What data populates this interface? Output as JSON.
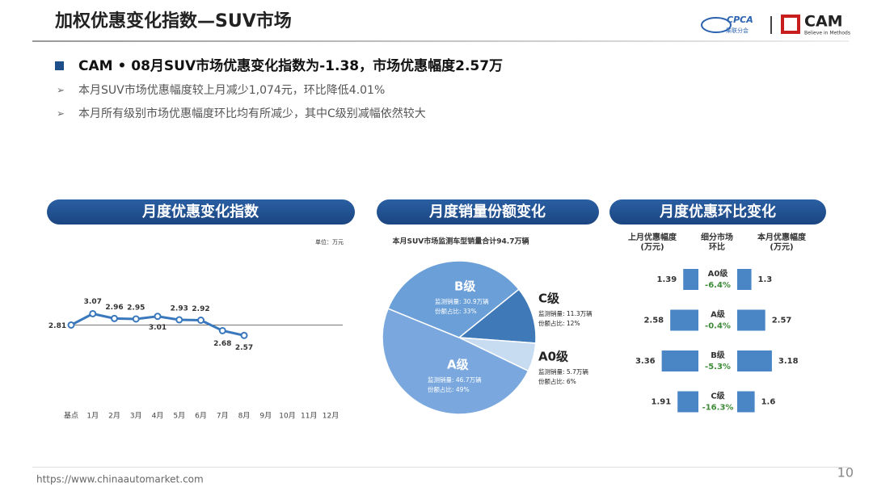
{
  "header": {
    "title": "加权优惠变化指数—SUV市场",
    "logo_cpca": "CPCA",
    "logo_cpca_sub": "乘联分会",
    "logo_cam": "CAM",
    "logo_cam_sub": "Believe in Methods"
  },
  "headline": "CAM • 08月SUV市场优惠变化指数为-1.38，市场优惠幅度2.57万",
  "bullets": [
    "本月SUV市场优惠幅度较上月减少1,074元，环比降低4.01%",
    "本月所有级别市场优惠幅度环比均有所减少，其中C级别减幅依然较大"
  ],
  "footer": {
    "url": "https://www.chinaautomarket.com",
    "page": "10"
  },
  "chart_data": [
    {
      "type": "line",
      "title": "月度优惠变化指数",
      "unit": "单位：万元",
      "categories": [
        "基点",
        "1月",
        "2月",
        "3月",
        "4月",
        "5月",
        "6月",
        "7月",
        "8月",
        "9月",
        "10月",
        "11月",
        "12月"
      ],
      "values": [
        2.81,
        3.07,
        2.96,
        2.95,
        3.01,
        2.93,
        2.92,
        2.68,
        2.57,
        null,
        null,
        null,
        null
      ],
      "color": "#3a78bd",
      "ylim": [
        2.0,
        3.6
      ]
    },
    {
      "type": "pie",
      "title": "月度销量份额变化",
      "subtitle": "本月SUV市场监测车型销量合计94.7万辆",
      "categories": [
        "C级",
        "A0级",
        "A级",
        "B级"
      ],
      "values": [
        12,
        6,
        49,
        33
      ],
      "value_labels": [
        "份额占比: 12%",
        "份额占比: 6%",
        "份额占比: 49%",
        "份额占比: 33%"
      ],
      "sales_labels": [
        "监测销量: 11.3万辆",
        "监测销量: 5.7万辆",
        "监测销量: 46.7万辆",
        "监测销量: 30.9万辆"
      ],
      "colors": [
        "#3f79b8",
        "#c7dbf1",
        "#7aa8de",
        "#6b9fd8"
      ]
    },
    {
      "type": "butterfly",
      "title": "月度优惠环比变化",
      "categories": [
        "A0级",
        "A级",
        "B级",
        "C级"
      ],
      "series": [
        {
          "name": "上月优惠幅度\n(万元)",
          "color": "#4a86c6",
          "values": [
            1.39,
            2.58,
            3.36,
            1.91
          ]
        },
        {
          "name": "本月优惠幅度\n(万元)",
          "color": "#4a86c6",
          "values": [
            1.3,
            2.57,
            3.18,
            1.6
          ]
        }
      ],
      "change_name": "细分市场\n环比",
      "change": [
        -6.4,
        -0.4,
        -5.3,
        -16.3
      ],
      "change_labels": [
        "-6.4%",
        "-0.4%",
        "-5.3%",
        "-16.3%"
      ],
      "xlim": [
        0,
        4
      ]
    }
  ]
}
